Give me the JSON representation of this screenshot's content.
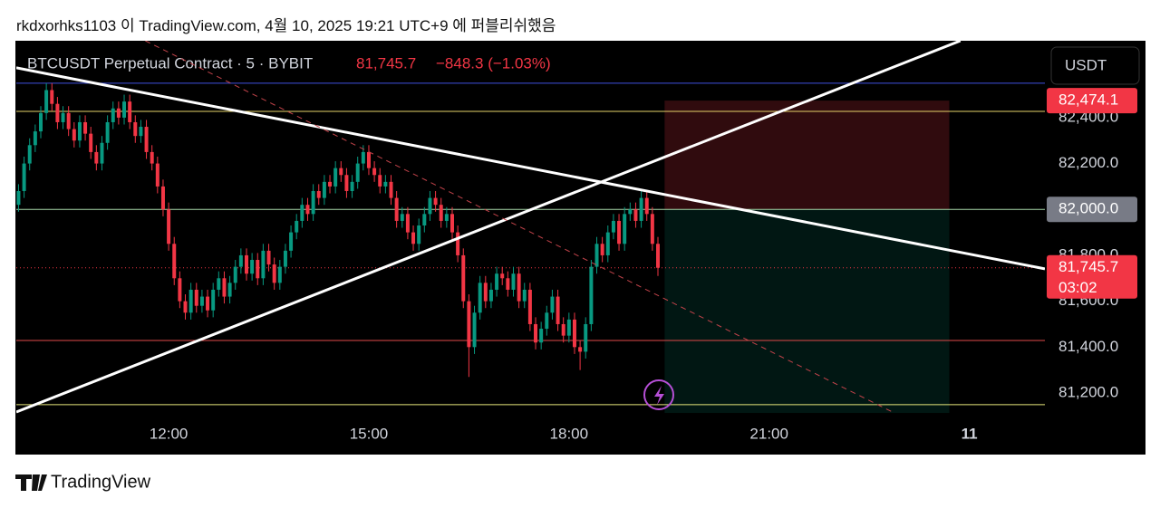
{
  "attribution": "rkdxorhks1103 이 TradingView.com, 4월 10, 2025 19:21 UTC+9 에 퍼블리쉬했음",
  "brand": "TradingView",
  "chart_data": {
    "type": "candlestick",
    "title": "BTCUSDT Perpetual Contract · 5 · BYBIT",
    "last_price_text": "81,745.7",
    "change_text": "−848.3 (−1.03%)",
    "currency": "USDT",
    "up_color": "#089981",
    "down_color": "#f23645",
    "xlim": [
      583,
      1508
    ],
    "xticks": [
      {
        "value": 720,
        "label": "12:00"
      },
      {
        "value": 900,
        "label": "15:00"
      },
      {
        "value": 1080,
        "label": "18:00"
      },
      {
        "value": 1260,
        "label": "21:00"
      },
      {
        "value": 1440,
        "label": "11"
      }
    ],
    "ylim": [
      81089.5,
      82735
    ],
    "yticks": [
      {
        "value": 81200,
        "label": "81,200.0"
      },
      {
        "value": 81400,
        "label": "81,400.0"
      },
      {
        "value": 81600,
        "label": "81,600.0"
      },
      {
        "value": 81800,
        "label": "81,800.0"
      },
      {
        "value": 82000,
        "label": "82,000.0"
      },
      {
        "value": 82200,
        "label": "82,200.0"
      },
      {
        "value": 82400,
        "label": "82,400.0"
      }
    ],
    "x": [
      585,
      590,
      595,
      600,
      605,
      610,
      615,
      620,
      625,
      630,
      635,
      640,
      645,
      650,
      655,
      660,
      665,
      670,
      675,
      680,
      685,
      690,
      695,
      700,
      705,
      710,
      715,
      720,
      725,
      730,
      735,
      740,
      745,
      750,
      755,
      760,
      765,
      770,
      775,
      780,
      785,
      790,
      795,
      800,
      805,
      810,
      815,
      820,
      825,
      830,
      835,
      840,
      845,
      850,
      855,
      860,
      865,
      870,
      875,
      880,
      885,
      890,
      895,
      900,
      905,
      910,
      915,
      920,
      925,
      930,
      935,
      940,
      945,
      950,
      955,
      960,
      965,
      970,
      975,
      980,
      985,
      990,
      995,
      1000,
      1005,
      1010,
      1015,
      1020,
      1025,
      1030,
      1035,
      1040,
      1045,
      1050,
      1055,
      1060,
      1065,
      1070,
      1075,
      1080,
      1085,
      1090,
      1095,
      1100,
      1105,
      1110,
      1115,
      1120,
      1125,
      1130,
      1135,
      1140,
      1145,
      1150,
      1155,
      1160
    ],
    "open": [
      82020,
      82080,
      82200,
      82280,
      82340,
      82420,
      82520,
      82460,
      82380,
      82420,
      82350,
      82300,
      82380,
      82330,
      82250,
      82200,
      82290,
      82380,
      82440,
      82400,
      82470,
      82380,
      82320,
      82360,
      82250,
      82200,
      82100,
      82000,
      81850,
      81700,
      81600,
      81550,
      81650,
      81580,
      81620,
      81560,
      81650,
      81700,
      81620,
      81680,
      81750,
      81800,
      81720,
      81780,
      81700,
      81820,
      81760,
      81680,
      81750,
      81820,
      81900,
      81950,
      82020,
      81980,
      82080,
      82050,
      82120,
      82100,
      82180,
      82150,
      82080,
      82120,
      82200,
      82250,
      82180,
      82150,
      82100,
      82120,
      82050,
      81950,
      81980,
      81900,
      81850,
      81930,
      81980,
      82050,
      82020,
      81950,
      81980,
      81900,
      81800,
      81600,
      81400,
      81550,
      81680,
      81600,
      81650,
      81720,
      81700,
      81650,
      81720,
      81600,
      81650,
      81500,
      81420,
      81480,
      81550,
      81620,
      81500,
      81450,
      81520,
      81400,
      81380,
      81500,
      81750,
      81850,
      81800,
      81900,
      81950,
      81850,
      81980,
      82000,
      81950,
      82050,
      81980,
      81850
    ],
    "high": [
      82110,
      82230,
      82310,
      82370,
      82450,
      82550,
      82550,
      82490,
      82450,
      82450,
      82380,
      82410,
      82410,
      82360,
      82280,
      82320,
      82410,
      82470,
      82470,
      82500,
      82500,
      82410,
      82390,
      82390,
      82280,
      82230,
      82130,
      82030,
      81880,
      81730,
      81630,
      81680,
      81680,
      81650,
      81650,
      81680,
      81730,
      81730,
      81710,
      81780,
      81830,
      81830,
      81810,
      81810,
      81850,
      81850,
      81790,
      81780,
      81850,
      81930,
      81980,
      82050,
      82050,
      82110,
      82110,
      82150,
      82150,
      82210,
      82210,
      82180,
      82150,
      82230,
      82280,
      82280,
      82210,
      82180,
      82150,
      82150,
      82080,
      82010,
      82010,
      81930,
      81960,
      82010,
      82080,
      82080,
      82050,
      82010,
      82010,
      81930,
      81830,
      81630,
      81580,
      81710,
      81710,
      81680,
      81750,
      81750,
      81730,
      81750,
      81750,
      81680,
      81680,
      81530,
      81510,
      81580,
      81650,
      81650,
      81530,
      81550,
      81550,
      81430,
      81530,
      81780,
      81880,
      81880,
      81930,
      81980,
      81980,
      82010,
      82030,
      82030,
      82080,
      82080,
      82010,
      81880
    ],
    "low": [
      81990,
      82050,
      82170,
      82250,
      82310,
      82390,
      82430,
      82350,
      82350,
      82320,
      82270,
      82270,
      82300,
      82220,
      82170,
      82170,
      82260,
      82350,
      82370,
      82370,
      82350,
      82290,
      82290,
      82220,
      82170,
      82070,
      81970,
      81820,
      81670,
      81570,
      81520,
      81520,
      81550,
      81550,
      81530,
      81530,
      81620,
      81590,
      81590,
      81650,
      81720,
      81690,
      81690,
      81670,
      81670,
      81730,
      81650,
      81650,
      81720,
      81790,
      81870,
      81920,
      81950,
      81950,
      82020,
      82020,
      82070,
      82070,
      82120,
      82050,
      82050,
      82090,
      82170,
      82150,
      82120,
      82070,
      82070,
      82020,
      81920,
      81920,
      81870,
      81820,
      81820,
      81900,
      81950,
      81990,
      81920,
      81920,
      81870,
      81770,
      81570,
      81270,
      81370,
      81520,
      81570,
      81570,
      81620,
      81670,
      81620,
      81620,
      81570,
      81570,
      81470,
      81390,
      81390,
      81450,
      81520,
      81470,
      81420,
      81420,
      81370,
      81300,
      81350,
      81470,
      81720,
      81770,
      81770,
      81870,
      81820,
      81820,
      81950,
      81920,
      81920,
      81950,
      81820,
      81710
    ],
    "close": [
      82080,
      82200,
      82280,
      82340,
      82420,
      82520,
      82460,
      82380,
      82420,
      82350,
      82300,
      82380,
      82330,
      82250,
      82200,
      82290,
      82380,
      82440,
      82400,
      82470,
      82380,
      82320,
      82360,
      82250,
      82200,
      82100,
      82000,
      81850,
      81700,
      81600,
      81550,
      81650,
      81580,
      81620,
      81560,
      81650,
      81700,
      81620,
      81680,
      81750,
      81800,
      81720,
      81780,
      81700,
      81820,
      81760,
      81680,
      81750,
      81820,
      81900,
      81950,
      82020,
      81980,
      82080,
      82050,
      82120,
      82100,
      82180,
      82150,
      82080,
      82120,
      82200,
      82250,
      82180,
      82150,
      82100,
      82120,
      82050,
      81950,
      81980,
      81900,
      81850,
      81930,
      81980,
      82050,
      82020,
      81950,
      81980,
      81900,
      81800,
      81600,
      81400,
      81550,
      81680,
      81600,
      81650,
      81720,
      81700,
      81650,
      81720,
      81600,
      81650,
      81500,
      81420,
      81480,
      81550,
      81620,
      81500,
      81450,
      81520,
      81400,
      81380,
      81500,
      81750,
      81850,
      81800,
      81900,
      81950,
      81850,
      81980,
      82000,
      81950,
      82050,
      81980,
      81850,
      81745.7
    ],
    "levels": [
      {
        "value": 82550,
        "color": "#3f51e0"
      },
      {
        "value": 82427,
        "color": "#e6d36a"
      },
      {
        "value": 82000,
        "color": "#a5d6a7"
      },
      {
        "value": 81429,
        "color": "#e04a4a"
      },
      {
        "value": 81149,
        "color": "#e6e67a"
      }
    ],
    "trendlines": [
      {
        "x": [
          583,
          1508
        ],
        "y": [
          82617,
          81741
        ],
        "color": "#ffffff"
      },
      {
        "x": [
          583,
          1432
        ],
        "y": [
          81117,
          82735
        ],
        "color": "#ffffff"
      },
      {
        "x": [
          699,
          1371
        ],
        "y": [
          82735,
          81117
        ],
        "color": "#c2434a"
      }
    ],
    "position": {
      "x": [
        1166,
        1422
      ],
      "top": {
        "value": 82474.1,
        "label": "82,474.1"
      },
      "entry": {
        "value": 82000,
        "label": "82,000.0"
      },
      "bottom": 81113
    },
    "last_price": {
      "value": 81745.7,
      "label": "81,745.7"
    },
    "countdown": "03:02"
  }
}
